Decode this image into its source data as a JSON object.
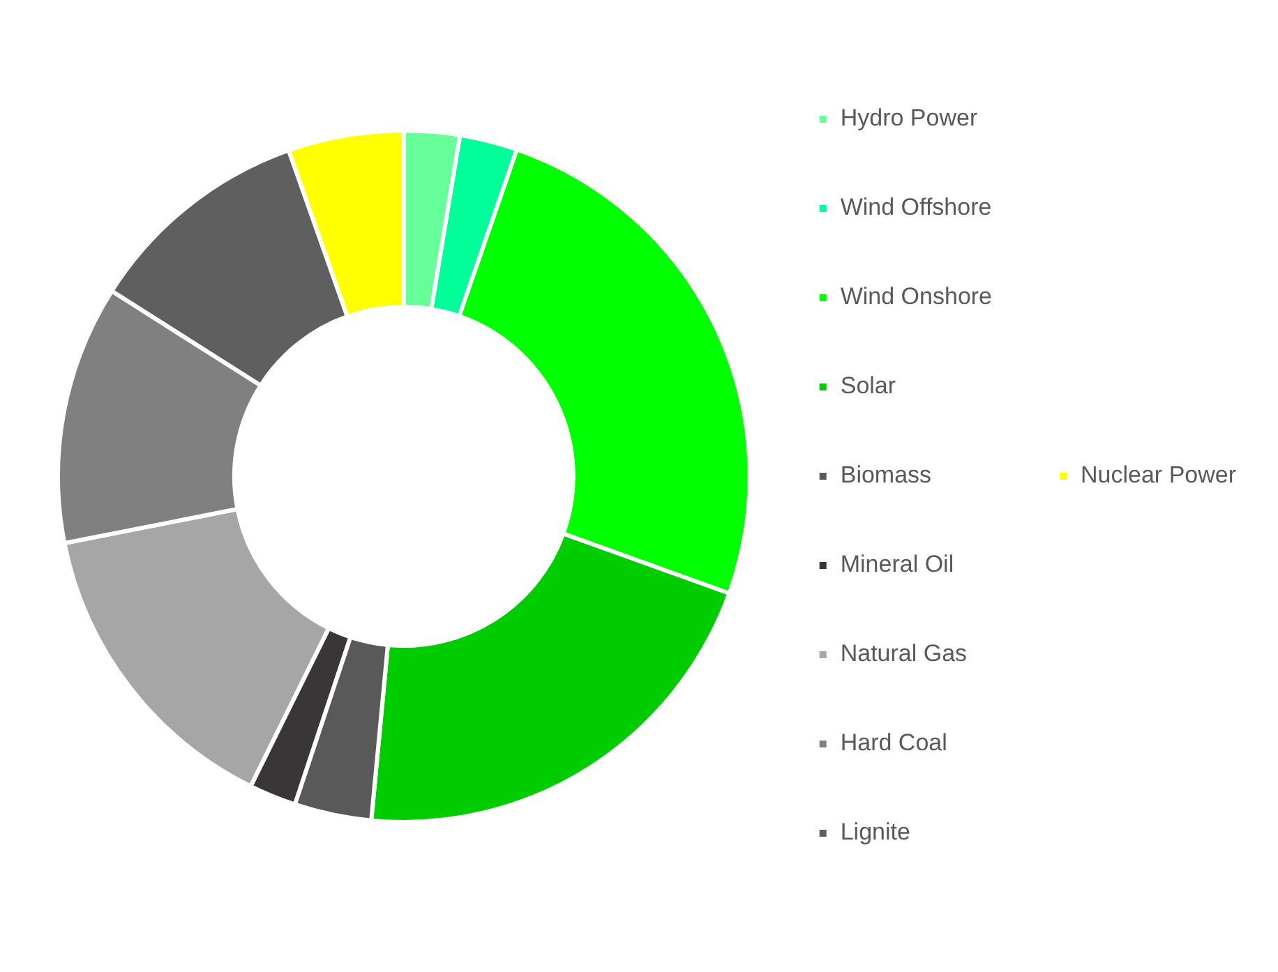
{
  "chart_data": {
    "type": "donut",
    "categories": [
      "Hydro Power",
      "Wind Offshore",
      "Wind Onshore",
      "Solar",
      "Biomass",
      "Mineral Oil",
      "Natural Gas",
      "Hard Coal",
      "Lignite",
      "Nuclear Power"
    ],
    "values": [
      2.6,
      2.7,
      25.2,
      21.0,
      3.6,
      2.2,
      14.6,
      12.1,
      10.6,
      5.4
    ],
    "colors": [
      "#66ff99",
      "#00ff99",
      "#00ff00",
      "#00cc00",
      "#595959",
      "#3a3536",
      "#a6a6a6",
      "#808080",
      "#5f5f5f",
      "#ffff00"
    ],
    "legend": "right"
  }
}
